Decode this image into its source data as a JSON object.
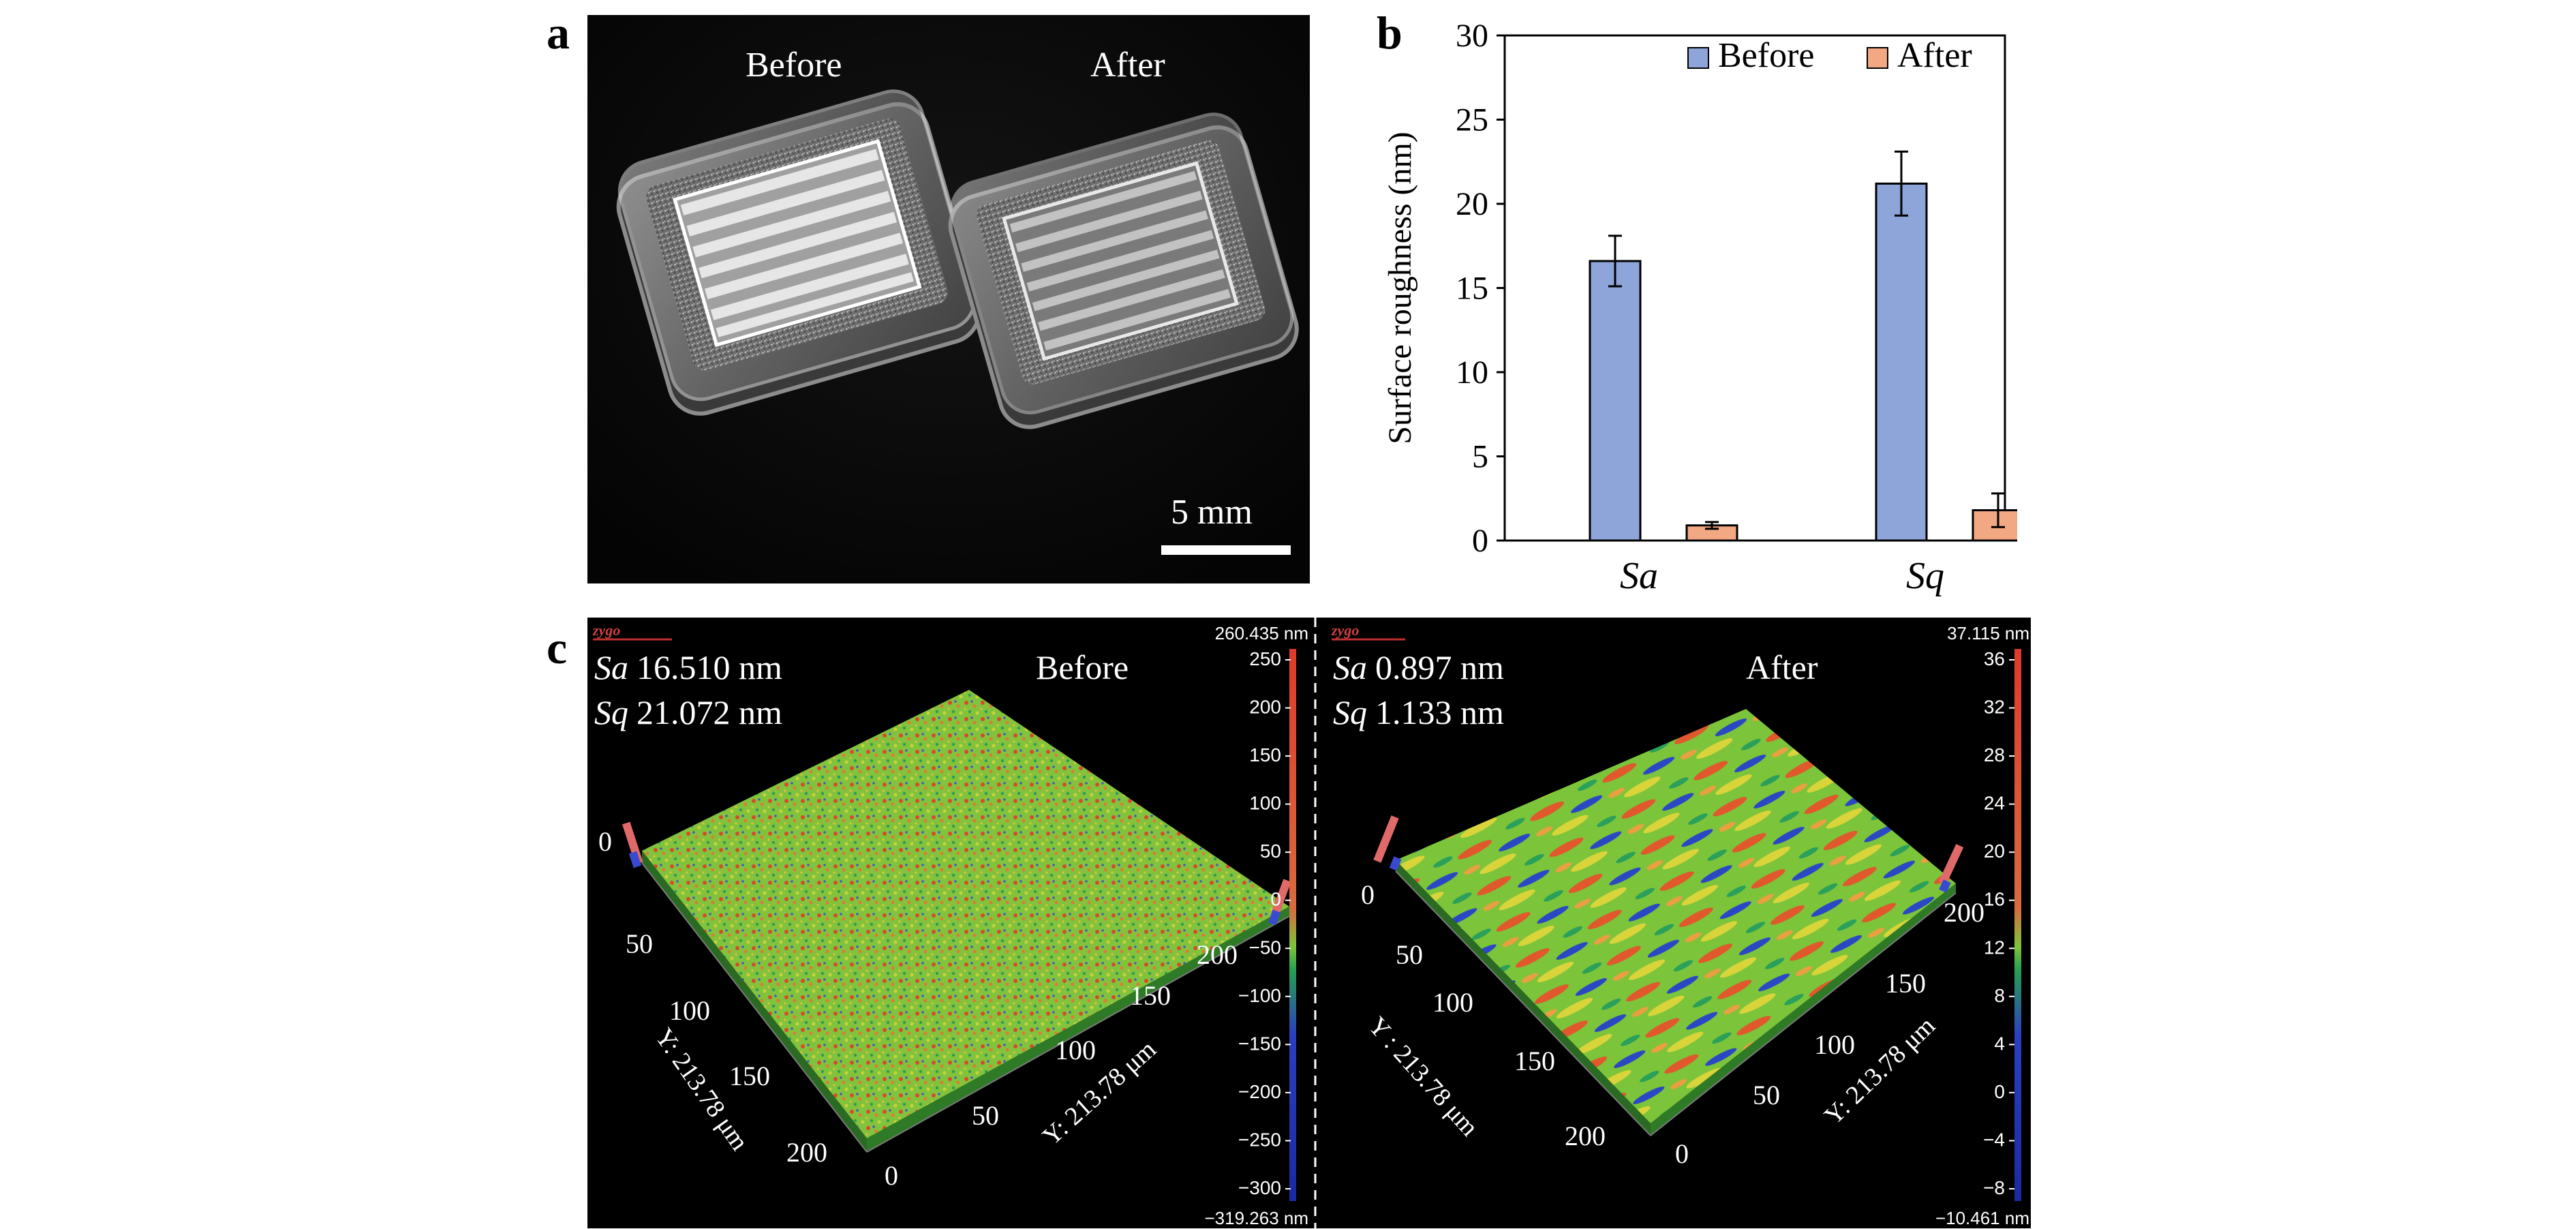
{
  "panels": {
    "a": {
      "label": "a",
      "before_label": "Before",
      "after_label": "After",
      "scale_bar_label": "5 mm"
    },
    "b": {
      "label": "b"
    },
    "c": {
      "label": "c",
      "left": {
        "sa_symbol": "Sa",
        "sa_value": "16.510 nm",
        "sq_symbol": "Sq",
        "sq_value": "21.072 nm",
        "title": "Before",
        "scale_max": "260.435 nm",
        "scale_min": "−319.263 nm",
        "scale_ticks": [
          "250",
          "200",
          "150",
          "100",
          "50",
          "0",
          "−50",
          "−100",
          "−150",
          "−200",
          "−250",
          "−300"
        ],
        "x_axis_ticks": [
          "0",
          "50",
          "100",
          "150",
          "200"
        ],
        "x_axis_label": "Y: 213.78 μm",
        "y_axis_ticks": [
          "0",
          "50",
          "100",
          "150",
          "200"
        ],
        "y_axis_label": "Y: 213.78 μm",
        "logo_text": "zygo"
      },
      "right": {
        "sa_symbol": "Sa",
        "sa_value": "0.897 nm",
        "sq_symbol": "Sq",
        "sq_value": "1.133 nm",
        "title": "After",
        "scale_max": "37.115 nm",
        "scale_min": "−10.461 nm",
        "scale_ticks": [
          "36",
          "32",
          "28",
          "24",
          "20",
          "16",
          "12",
          "8",
          "4",
          "0",
          "−4",
          "−8"
        ],
        "x_axis_ticks": [
          "0",
          "50",
          "100",
          "150",
          "200"
        ],
        "x_axis_label": "Y: 213.78 μm",
        "y_axis_ticks": [
          "0",
          "50",
          "100",
          "150",
          "200"
        ],
        "y_axis_label": "Y : 213.78 μm",
        "logo_text": "zygo"
      },
      "colors": {
        "high": "#e03a2a",
        "mid": "#7cc43a",
        "low": "#2a3fc0"
      }
    }
  },
  "chart_data": {
    "type": "bar",
    "categories": [
      "Sa",
      "Sq"
    ],
    "series": [
      {
        "name": "Before",
        "values": [
          16.6,
          21.2
        ],
        "errors": [
          1.5,
          1.9
        ],
        "color": "#8da5d8"
      },
      {
        "name": "After",
        "values": [
          0.9,
          1.8
        ],
        "errors": [
          0.2,
          1.0
        ],
        "color": "#f2a882"
      }
    ],
    "ylabel": "Surface roughness (nm)",
    "xlabel": "",
    "ylim": [
      0,
      30
    ],
    "yticks": [
      0,
      5,
      10,
      15,
      20,
      25,
      30
    ],
    "legend": "top-right",
    "grid": false
  }
}
